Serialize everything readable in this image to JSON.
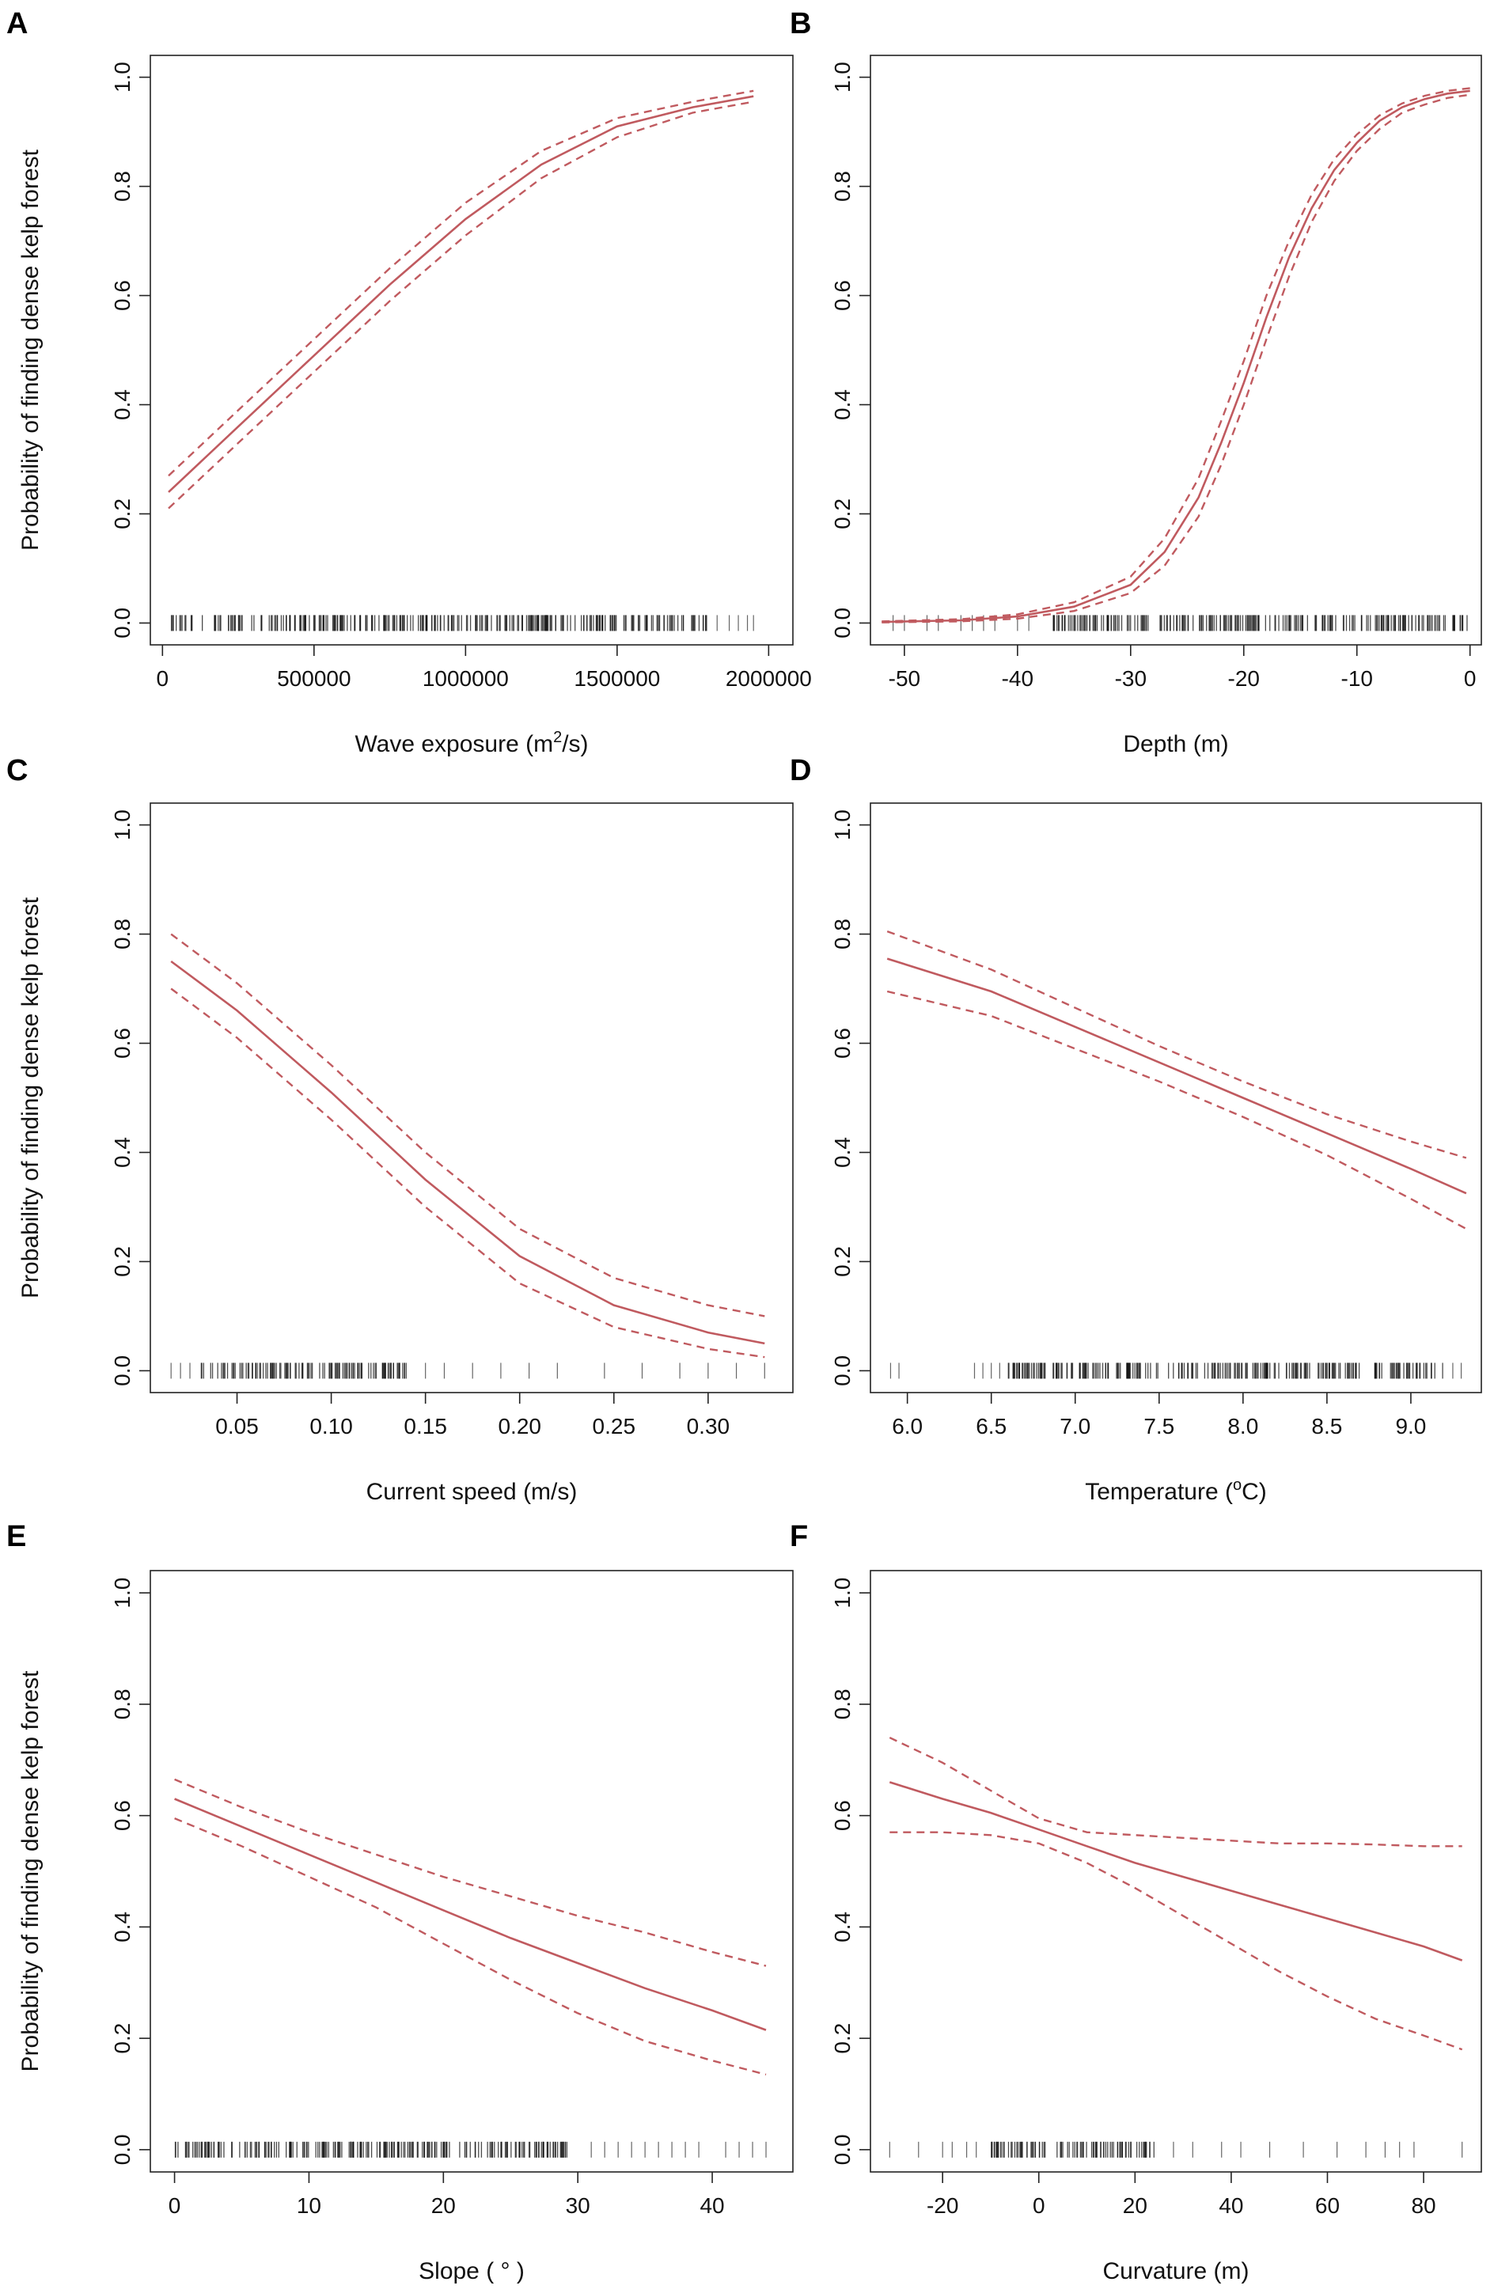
{
  "figure": {
    "fit_color": "#c05a5f",
    "rug_color": "#111111",
    "axis_color": "#222222"
  },
  "chart_data": [
    {
      "panel": "A",
      "type": "line",
      "xlabel": "Wave exposure (m",
      "xlabel_sup": "2",
      "xlabel_tail": "/s)",
      "ylabel": "Probability of finding dense kelp forest",
      "xlim": [
        -40000,
        2080000
      ],
      "ylim": [
        -0.04,
        1.04
      ],
      "xticks": [
        0,
        500000,
        1000000,
        1500000,
        2000000
      ],
      "xtick_labels": [
        "0",
        "500000",
        "1000000",
        "1500000",
        "2000000"
      ],
      "yticks": [
        0.0,
        0.2,
        0.4,
        0.6,
        0.8,
        1.0
      ],
      "ytick_labels": [
        "0.0",
        "0.2",
        "0.4",
        "0.6",
        "0.8",
        "1.0"
      ],
      "series": [
        {
          "name": "fit",
          "x": [
            20000,
            250000,
            500000,
            750000,
            1000000,
            1250000,
            1500000,
            1750000,
            1950000
          ],
          "values": [
            0.24,
            0.36,
            0.49,
            0.62,
            0.74,
            0.84,
            0.91,
            0.945,
            0.965
          ]
        },
        {
          "name": "upper",
          "x": [
            20000,
            250000,
            500000,
            750000,
            1000000,
            1250000,
            1500000,
            1750000,
            1950000
          ],
          "values": [
            0.27,
            0.39,
            0.52,
            0.65,
            0.77,
            0.865,
            0.925,
            0.955,
            0.975
          ]
        },
        {
          "name": "lower",
          "x": [
            20000,
            250000,
            500000,
            750000,
            1000000,
            1250000,
            1500000,
            1750000,
            1950000
          ],
          "values": [
            0.21,
            0.33,
            0.46,
            0.59,
            0.71,
            0.815,
            0.89,
            0.935,
            0.955
          ]
        }
      ],
      "rug": {
        "dense": [
          [
            20000,
            1800000
          ]
        ],
        "sparse": [
          1830000,
          1870000,
          1900000,
          1930000,
          1950000
        ]
      }
    },
    {
      "panel": "B",
      "type": "line",
      "xlabel": "Depth (m)",
      "ylabel": "",
      "xlim": [
        -53,
        1
      ],
      "ylim": [
        -0.04,
        1.04
      ],
      "xticks": [
        -50,
        -40,
        -30,
        -20,
        -10,
        0
      ],
      "xtick_labels": [
        "-50",
        "-40",
        "-30",
        "-20",
        "-10",
        "0"
      ],
      "yticks": [
        0.0,
        0.2,
        0.4,
        0.6,
        0.8,
        1.0
      ],
      "ytick_labels": [
        "0.0",
        "0.2",
        "0.4",
        "0.6",
        "0.8",
        "1.0"
      ],
      "series": [
        {
          "name": "fit",
          "x": [
            -52,
            -45,
            -40,
            -35,
            -30,
            -27,
            -24,
            -22,
            -20,
            -18,
            -16,
            -14,
            -12,
            -10,
            -8,
            -6,
            -4,
            -2,
            0
          ],
          "values": [
            0.002,
            0.005,
            0.012,
            0.03,
            0.07,
            0.13,
            0.23,
            0.33,
            0.44,
            0.56,
            0.67,
            0.76,
            0.83,
            0.88,
            0.92,
            0.945,
            0.96,
            0.97,
            0.975
          ]
        },
        {
          "name": "upper",
          "x": [
            -52,
            -45,
            -40,
            -35,
            -30,
            -27,
            -24,
            -22,
            -20,
            -18,
            -16,
            -14,
            -12,
            -10,
            -8,
            -6,
            -4,
            -2,
            0
          ],
          "values": [
            0.003,
            0.007,
            0.016,
            0.038,
            0.085,
            0.155,
            0.265,
            0.37,
            0.48,
            0.6,
            0.7,
            0.785,
            0.85,
            0.895,
            0.93,
            0.952,
            0.966,
            0.975,
            0.98
          ]
        },
        {
          "name": "lower",
          "x": [
            -52,
            -45,
            -40,
            -35,
            -30,
            -27,
            -24,
            -22,
            -20,
            -18,
            -16,
            -14,
            -12,
            -10,
            -8,
            -6,
            -4,
            -2,
            0
          ],
          "values": [
            0.001,
            0.003,
            0.008,
            0.022,
            0.055,
            0.105,
            0.195,
            0.29,
            0.4,
            0.52,
            0.635,
            0.735,
            0.81,
            0.865,
            0.905,
            0.935,
            0.95,
            0.962,
            0.968
          ]
        }
      ],
      "rug": {
        "dense": [
          [
            -37,
            0
          ]
        ],
        "sparse": [
          -51,
          -50,
          -48,
          -47,
          -45,
          -44,
          -43,
          -42,
          -40,
          -39
        ]
      }
    },
    {
      "panel": "C",
      "type": "line",
      "xlabel": "Current speed (m/s)",
      "ylabel": "Probability of finding dense kelp forest",
      "xlim": [
        0.004,
        0.345
      ],
      "ylim": [
        -0.04,
        1.04
      ],
      "xticks": [
        0.05,
        0.1,
        0.15,
        0.2,
        0.25,
        0.3
      ],
      "xtick_labels": [
        "0.05",
        "0.10",
        "0.15",
        "0.20",
        "0.25",
        "0.30"
      ],
      "yticks": [
        0.0,
        0.2,
        0.4,
        0.6,
        0.8,
        1.0
      ],
      "ytick_labels": [
        "0.0",
        "0.2",
        "0.4",
        "0.6",
        "0.8",
        "1.0"
      ],
      "series": [
        {
          "name": "fit",
          "x": [
            0.015,
            0.05,
            0.1,
            0.15,
            0.2,
            0.25,
            0.3,
            0.33
          ],
          "values": [
            0.75,
            0.66,
            0.51,
            0.35,
            0.21,
            0.12,
            0.07,
            0.05
          ]
        },
        {
          "name": "upper",
          "x": [
            0.015,
            0.05,
            0.1,
            0.15,
            0.2,
            0.25,
            0.3,
            0.33
          ],
          "values": [
            0.8,
            0.71,
            0.56,
            0.4,
            0.26,
            0.17,
            0.12,
            0.1
          ]
        },
        {
          "name": "lower",
          "x": [
            0.015,
            0.05,
            0.1,
            0.15,
            0.2,
            0.25,
            0.3,
            0.33
          ],
          "values": [
            0.7,
            0.61,
            0.46,
            0.3,
            0.16,
            0.08,
            0.04,
            0.025
          ]
        }
      ],
      "rug": {
        "dense": [
          [
            0.03,
            0.14
          ]
        ],
        "sparse": [
          0.015,
          0.02,
          0.025,
          0.15,
          0.16,
          0.175,
          0.19,
          0.205,
          0.22,
          0.245,
          0.265,
          0.285,
          0.3,
          0.315,
          0.33
        ]
      }
    },
    {
      "panel": "D",
      "type": "line",
      "xlabel": "Temperature (",
      "xlabel_sup": "o",
      "xlabel_tail": "C)",
      "ylabel": "",
      "xlim": [
        5.78,
        9.42
      ],
      "ylim": [
        -0.04,
        1.04
      ],
      "xticks": [
        6.0,
        6.5,
        7.0,
        7.5,
        8.0,
        8.5,
        9.0
      ],
      "xtick_labels": [
        "6.0",
        "6.5",
        "7.0",
        "7.5",
        "8.0",
        "8.5",
        "9.0"
      ],
      "yticks": [
        0.0,
        0.2,
        0.4,
        0.6,
        0.8,
        1.0
      ],
      "ytick_labels": [
        "0.0",
        "0.2",
        "0.4",
        "0.6",
        "0.8",
        "1.0"
      ],
      "series": [
        {
          "name": "fit",
          "x": [
            5.88,
            6.5,
            7.0,
            7.5,
            8.0,
            8.5,
            9.0,
            9.33
          ],
          "values": [
            0.755,
            0.695,
            0.63,
            0.565,
            0.5,
            0.435,
            0.37,
            0.325
          ]
        },
        {
          "name": "upper",
          "x": [
            5.88,
            6.5,
            7.0,
            7.5,
            8.0,
            8.5,
            9.0,
            9.33
          ],
          "values": [
            0.805,
            0.735,
            0.665,
            0.595,
            0.53,
            0.47,
            0.42,
            0.39
          ]
        },
        {
          "name": "lower",
          "x": [
            5.88,
            6.5,
            7.0,
            7.5,
            8.0,
            8.5,
            9.0,
            9.33
          ],
          "values": [
            0.695,
            0.65,
            0.59,
            0.53,
            0.465,
            0.395,
            0.315,
            0.26
          ]
        }
      ],
      "rug": {
        "dense": [
          [
            6.6,
            9.2
          ]
        ],
        "sparse": [
          5.9,
          5.95,
          6.4,
          6.45,
          6.5,
          6.55,
          9.25,
          9.3
        ]
      }
    },
    {
      "panel": "E",
      "type": "line",
      "xlabel": "Slope ( ° )",
      "ylabel": "Probability of finding dense kelp forest",
      "xlim": [
        -1.8,
        46
      ],
      "ylim": [
        -0.04,
        1.04
      ],
      "xticks": [
        0,
        10,
        20,
        30,
        40
      ],
      "xtick_labels": [
        "0",
        "10",
        "20",
        "30",
        "40"
      ],
      "yticks": [
        0.0,
        0.2,
        0.4,
        0.6,
        0.8,
        1.0
      ],
      "ytick_labels": [
        "0.0",
        "0.2",
        "0.4",
        "0.6",
        "0.8",
        "1.0"
      ],
      "series": [
        {
          "name": "fit",
          "x": [
            0,
            5,
            10,
            15,
            20,
            25,
            30,
            35,
            40,
            44
          ],
          "values": [
            0.63,
            0.58,
            0.53,
            0.48,
            0.43,
            0.38,
            0.335,
            0.29,
            0.25,
            0.215
          ]
        },
        {
          "name": "upper",
          "x": [
            0,
            5,
            10,
            15,
            20,
            25,
            30,
            35,
            40,
            44
          ],
          "values": [
            0.665,
            0.615,
            0.57,
            0.53,
            0.49,
            0.455,
            0.42,
            0.39,
            0.355,
            0.33
          ]
        },
        {
          "name": "lower",
          "x": [
            0,
            5,
            10,
            15,
            20,
            25,
            30,
            35,
            40,
            44
          ],
          "values": [
            0.595,
            0.545,
            0.49,
            0.435,
            0.37,
            0.305,
            0.245,
            0.195,
            0.16,
            0.135
          ]
        }
      ],
      "rug": {
        "dense": [
          [
            0,
            30
          ]
        ],
        "sparse": [
          31,
          32,
          33,
          34,
          35,
          36,
          37,
          38,
          39,
          41,
          42,
          43,
          44
        ]
      }
    },
    {
      "panel": "F",
      "type": "line",
      "xlabel": "Curvature (m)",
      "ylabel": "",
      "xlim": [
        -35,
        92
      ],
      "ylim": [
        -0.04,
        1.04
      ],
      "xticks": [
        -20,
        0,
        20,
        40,
        60,
        80
      ],
      "xtick_labels": [
        "-20",
        "0",
        "20",
        "40",
        "60",
        "80"
      ],
      "yticks": [
        0.0,
        0.2,
        0.4,
        0.6,
        0.8,
        1.0
      ],
      "ytick_labels": [
        "0.0",
        "0.2",
        "0.4",
        "0.6",
        "0.8",
        "1.0"
      ],
      "series": [
        {
          "name": "fit",
          "x": [
            -31,
            -20,
            -10,
            0,
            10,
            20,
            30,
            40,
            50,
            60,
            70,
            80,
            88
          ],
          "values": [
            0.66,
            0.63,
            0.605,
            0.575,
            0.545,
            0.515,
            0.49,
            0.465,
            0.44,
            0.415,
            0.39,
            0.365,
            0.34
          ]
        },
        {
          "name": "upper",
          "x": [
            -31,
            -20,
            -10,
            0,
            10,
            20,
            30,
            40,
            50,
            60,
            70,
            80,
            88
          ],
          "values": [
            0.74,
            0.695,
            0.645,
            0.595,
            0.57,
            0.565,
            0.56,
            0.555,
            0.55,
            0.55,
            0.548,
            0.545,
            0.545
          ]
        },
        {
          "name": "lower",
          "x": [
            -31,
            -20,
            -10,
            0,
            10,
            20,
            30,
            40,
            50,
            60,
            70,
            80,
            88
          ],
          "values": [
            0.57,
            0.57,
            0.565,
            0.55,
            0.515,
            0.47,
            0.42,
            0.37,
            0.32,
            0.275,
            0.235,
            0.205,
            0.18
          ]
        }
      ],
      "rug": {
        "dense": [
          [
            -10,
            25
          ]
        ],
        "sparse": [
          -31,
          -25,
          -20,
          -18,
          -15,
          -13,
          28,
          32,
          38,
          42,
          48,
          55,
          62,
          68,
          72,
          75,
          78,
          88
        ]
      }
    }
  ]
}
